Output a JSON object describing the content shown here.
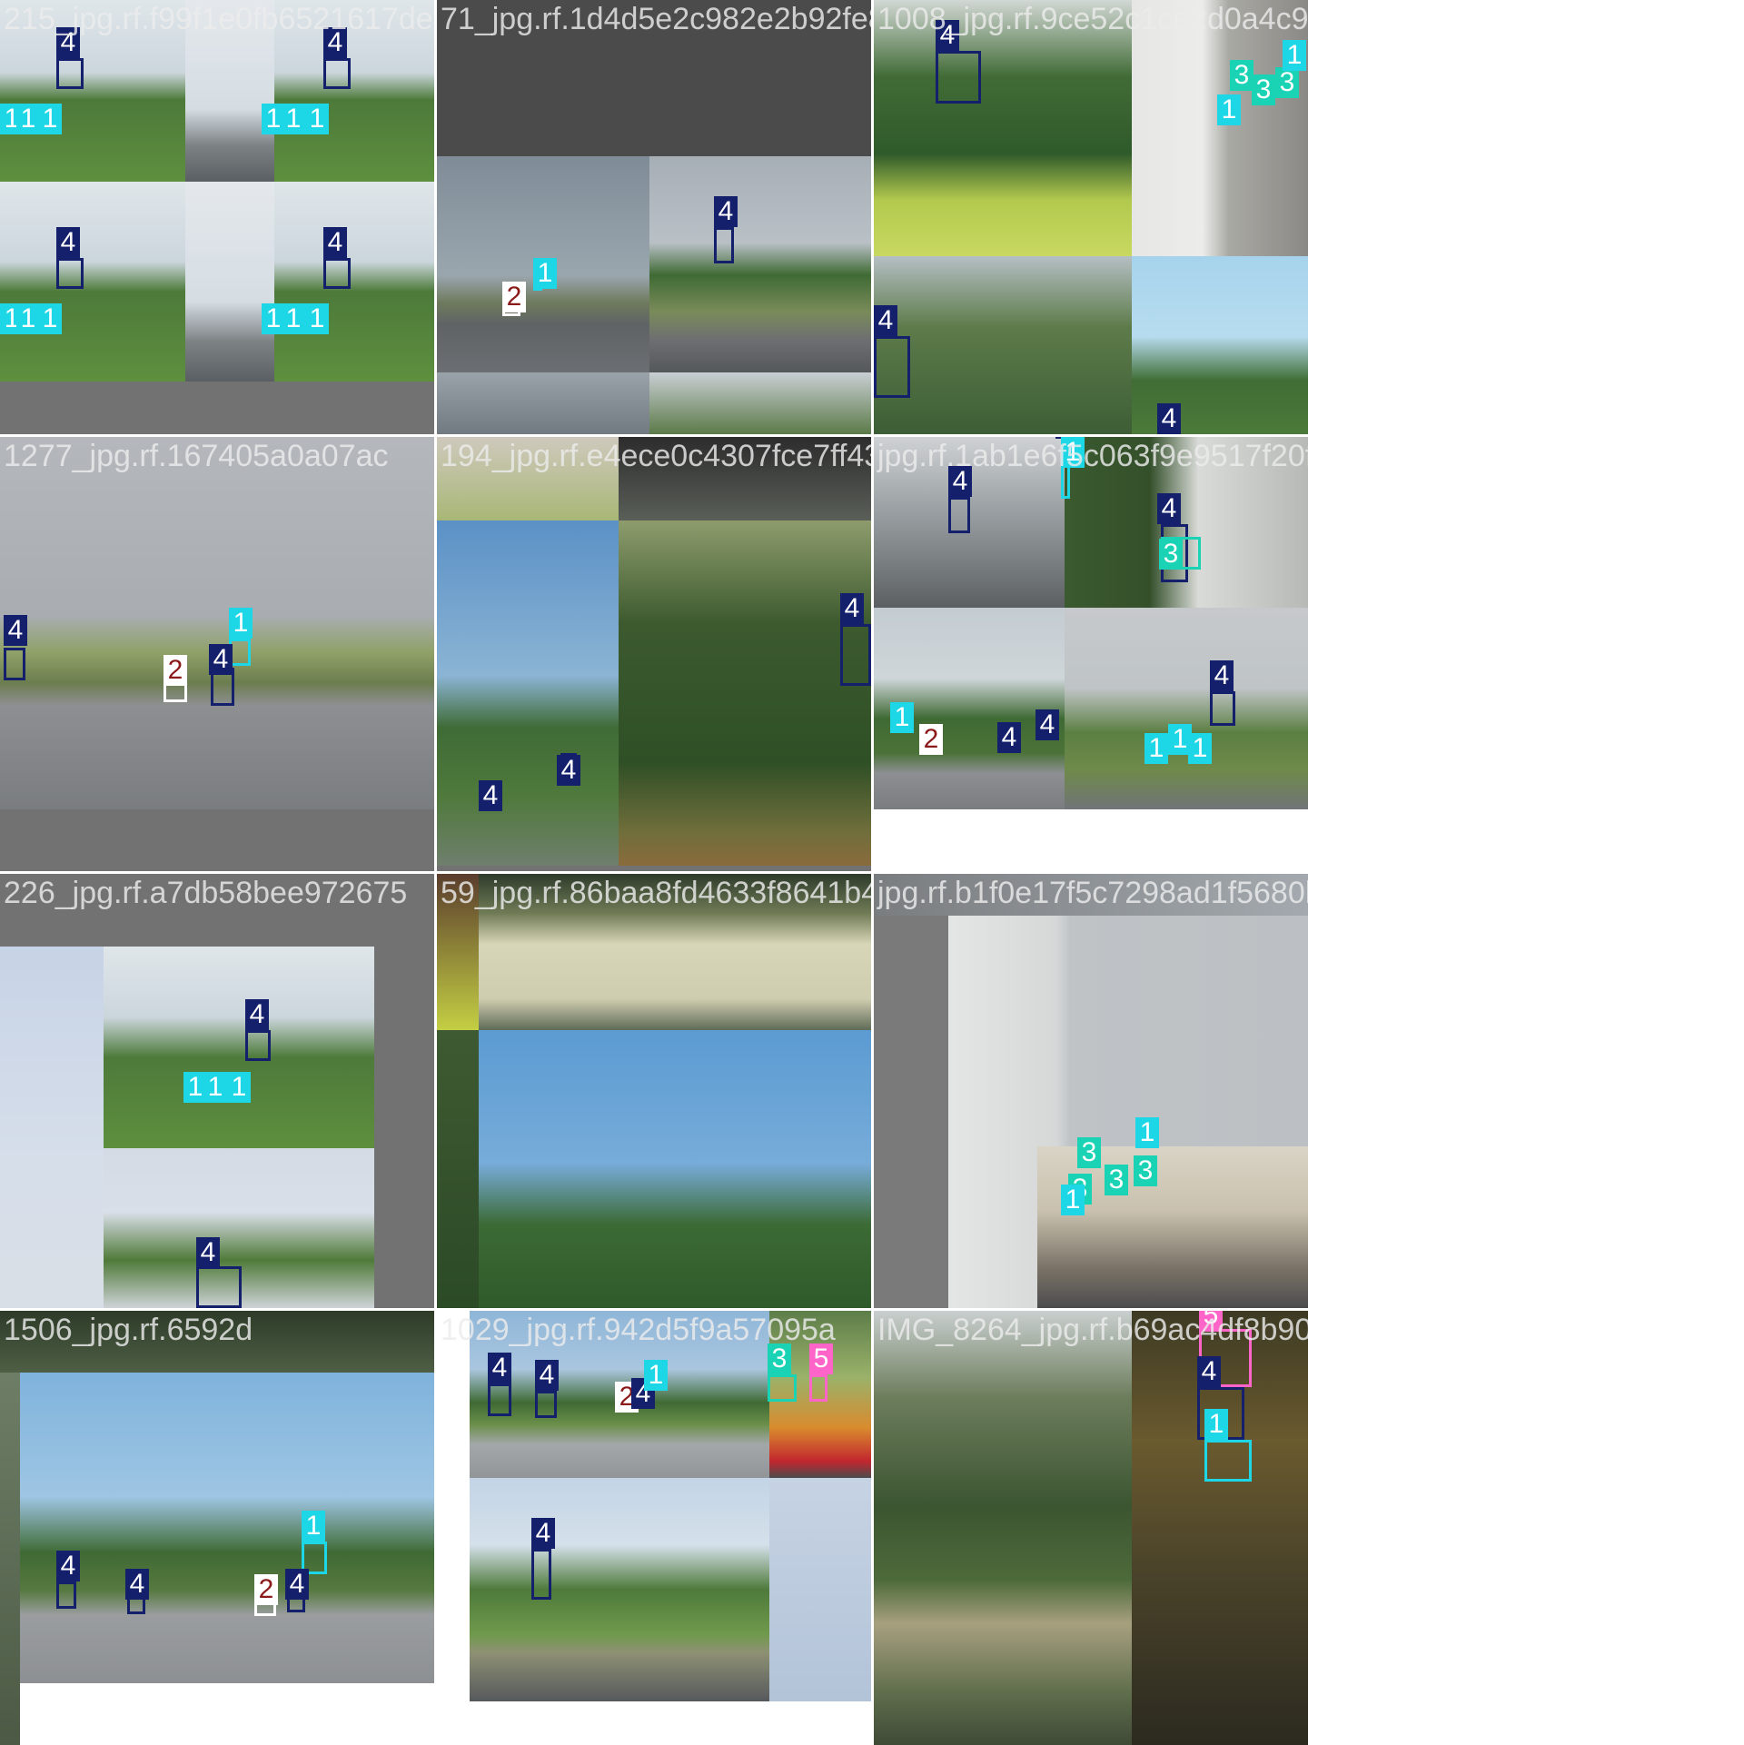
{
  "class_colors": {
    "1": "#1ed7e6",
    "2": "#ffffff",
    "3": "#1ad2b4",
    "4": "#14206b",
    "5": "#ff64c8"
  },
  "label_text_colors": {
    "1": "#ffffff",
    "2": "#8b1a1a",
    "3": "#ffffff",
    "4": "#ffffff",
    "5": "#ffffff"
  },
  "tiles": [
    {
      "name": "215_jpg.rf.f99f1e0fb6521617de",
      "labels": [
        "4",
        "4",
        "4",
        "4",
        "1",
        "1",
        "1",
        "1",
        "1",
        "1",
        "1",
        "1",
        "1",
        "1",
        "1",
        "1"
      ]
    },
    {
      "name": "71_jpg.rf.1d4d5e2c982e2b92fe82a0a4e",
      "labels": [
        "4",
        "1",
        "2"
      ]
    },
    {
      "name": "1008_jpg.rf.9ce52c1ce2d0a4c94bf18e19c5077d124a1",
      "labels": [
        "4",
        "3",
        "3",
        "3",
        "1",
        "1",
        "4",
        "4"
      ]
    },
    {
      "name": "1277_jpg.rf.167405a0a07ac",
      "labels": [
        "4",
        "1",
        "4",
        "2"
      ]
    },
    {
      "name": "194_jpg.rf.e4ece0c4307fce7ff43e25",
      "labels": [
        "4",
        "4",
        "4"
      ]
    },
    {
      "name": "jpg.rf.1ab1e6f5c063f9e9517f20f",
      "labels": [
        "4",
        "4",
        "1",
        "4",
        "3",
        "4",
        "4",
        "4",
        "1",
        "2",
        "1",
        "1",
        "1"
      ]
    },
    {
      "name": "226_jpg.rf.a7db58bee972675",
      "labels": [
        "4",
        "1",
        "1",
        "1",
        "4"
      ]
    },
    {
      "name": "59_jpg.rf.86baa8fd4633f8641b4",
      "labels": []
    },
    {
      "name": "jpg.rf.b1f0e17f5c7298ad1f5680bcea9ce",
      "labels": [
        "3",
        "1",
        "3",
        "3",
        "1",
        "3"
      ]
    },
    {
      "name": "1506_jpg.rf.6592d",
      "labels": [
        "1",
        "4",
        "4",
        "4",
        "2"
      ]
    },
    {
      "name": "1029_jpg.rf.942d5f9a57095a",
      "labels": [
        "4",
        "4",
        "2",
        "4",
        "1",
        "3",
        "5",
        "4"
      ]
    },
    {
      "name": "IMG_8264_jpg.rf.b69ac4df8b9064b7d16fe",
      "labels": [
        "5",
        "4",
        "1"
      ]
    }
  ]
}
